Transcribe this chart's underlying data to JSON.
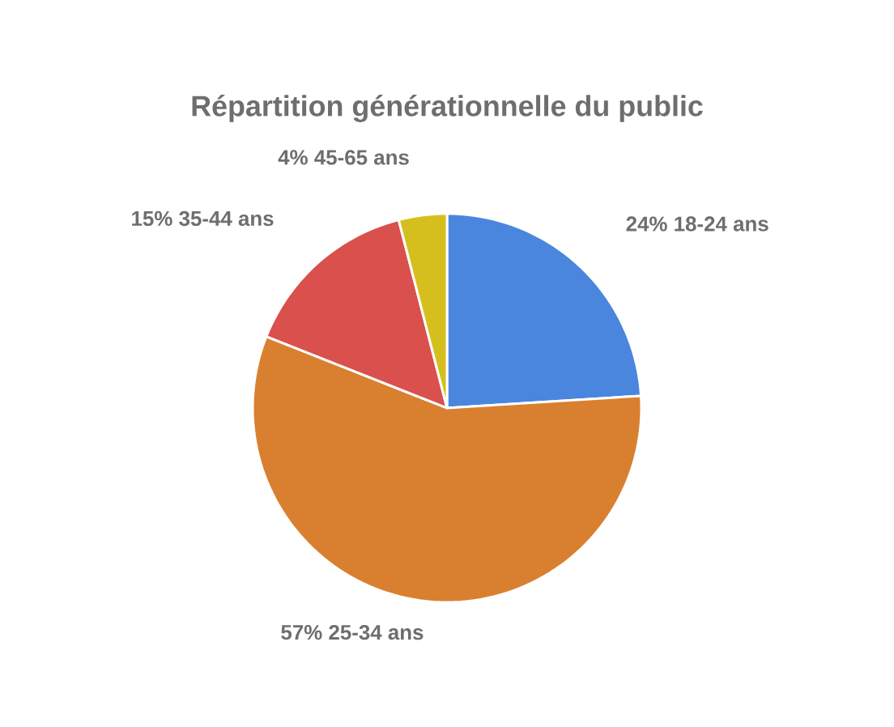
{
  "chart_data": {
    "type": "pie",
    "title": "Répartition générationnelle du public",
    "categories": [
      "18-24 ans",
      "25-34 ans",
      "35-44 ans",
      "45-65 ans"
    ],
    "values": [
      24,
      57,
      15,
      4
    ],
    "value_labels": [
      "24%",
      "57%",
      "15%",
      "4%"
    ],
    "colors": [
      "#4a86de",
      "#d98030",
      "#d9504c",
      "#d4bf1e"
    ]
  }
}
